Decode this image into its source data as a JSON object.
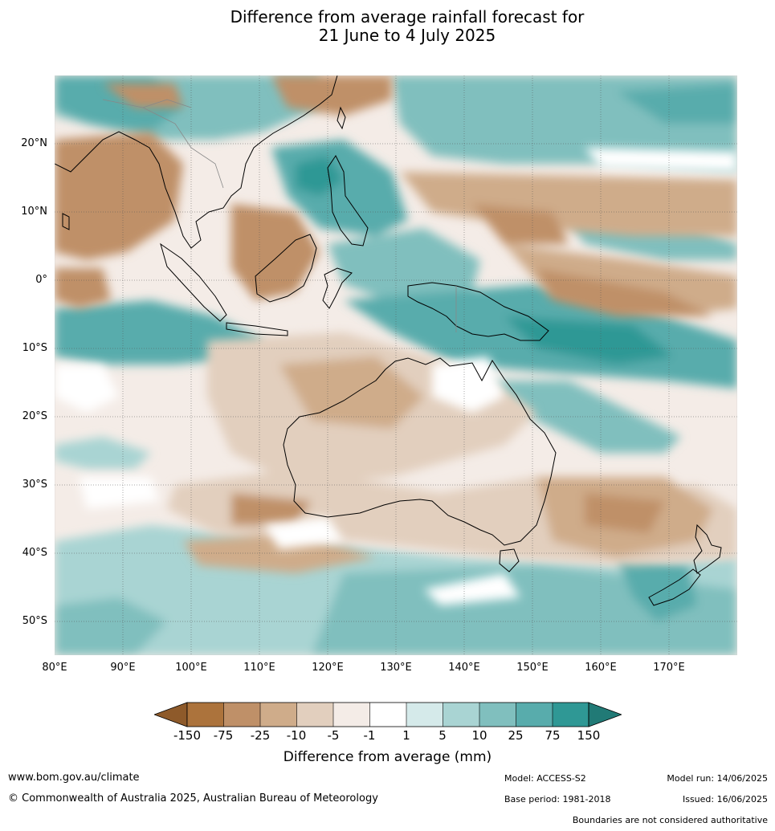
{
  "title_line1": "Difference from average rainfall forecast for",
  "title_line2": "21 June to 4 July 2025",
  "map": {
    "lat_labels": [
      "20°N",
      "10°N",
      "0°",
      "10°S",
      "20°S",
      "30°S",
      "40°S",
      "50°S"
    ],
    "lon_labels": [
      "80°E",
      "90°E",
      "100°E",
      "110°E",
      "120°E",
      "130°E",
      "140°E",
      "150°E",
      "160°E",
      "170°E"
    ]
  },
  "legend": {
    "title": "Difference from average (mm)",
    "ticks": [
      "-150",
      "-75",
      "-25",
      "-10",
      "-5",
      "-1",
      "1",
      "5",
      "10",
      "25",
      "75",
      "150"
    ],
    "colors": [
      "#8e5a2a",
      "#ac733c",
      "#bf9068",
      "#cfac8a",
      "#e2cfbe",
      "#f4ece7",
      "#ffffff",
      "#d5eaea",
      "#a9d4d3",
      "#80bfbe",
      "#58acac",
      "#2f9895",
      "#217a76"
    ]
  },
  "footer": {
    "website": "www.bom.gov.au/climate",
    "copyright": "© Commonwealth of Australia 2025, Australian Bureau of Meteorology",
    "model": "Model: ACCESS-S2",
    "model_run": "Model run: 14/06/2025",
    "base_period": "Base period: 1981-2018",
    "issued": "Issued: 16/06/2025",
    "disclaimer": "Boundaries are not considered authoritative"
  }
}
